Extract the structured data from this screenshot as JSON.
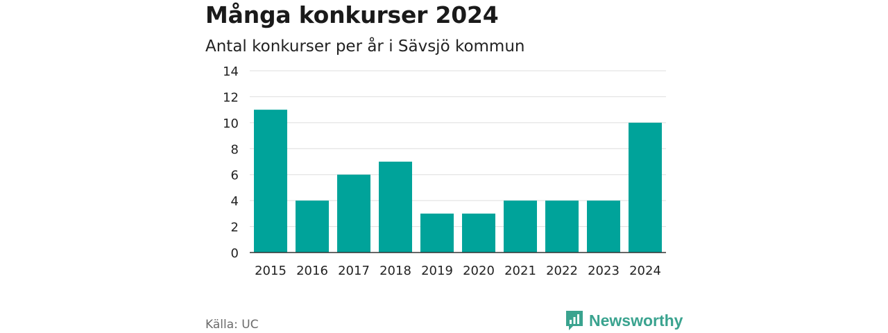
{
  "title": "Många konkurser 2024",
  "subtitle": "Antal konkurser per år i Sävsjö kommun",
  "source": "Källa: UC",
  "brand": {
    "name": "Newsworthy",
    "logo_icon": "bar-chart-speech-bubble-icon"
  },
  "colors": {
    "bar": "#00A39A",
    "grid": "#dddddd",
    "axis": "#333333",
    "brand": "#3aa38f"
  },
  "chart_data": {
    "type": "bar",
    "categories": [
      "2015",
      "2016",
      "2017",
      "2018",
      "2019",
      "2020",
      "2021",
      "2022",
      "2023",
      "2024"
    ],
    "values": [
      11,
      4,
      6,
      7,
      3,
      3,
      4,
      4,
      4,
      10
    ],
    "ylim": [
      0,
      14
    ],
    "yticks": [
      "0",
      "2",
      "4",
      "6",
      "8",
      "10",
      "12",
      "14"
    ],
    "grid": true,
    "xlabel": "",
    "ylabel": ""
  }
}
